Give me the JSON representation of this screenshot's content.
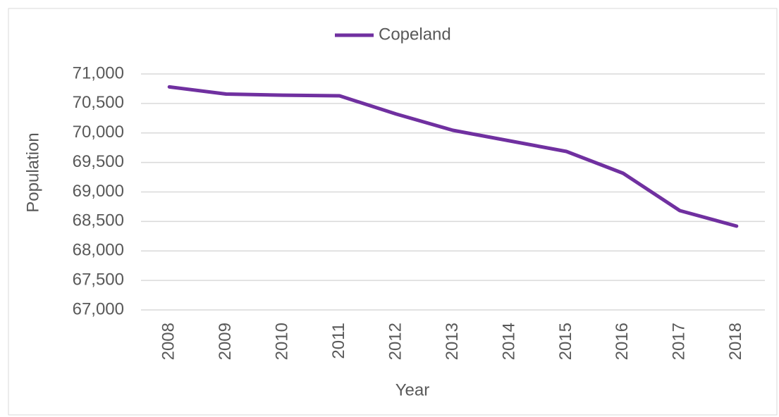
{
  "chart_data": {
    "type": "line",
    "categories": [
      "2008",
      "2009",
      "2010",
      "2011",
      "2012",
      "2013",
      "2014",
      "2015",
      "2016",
      "2017",
      "2018"
    ],
    "series": [
      {
        "name": "Copeland",
        "color": "#7030a0",
        "values": [
          70780,
          70660,
          70640,
          70630,
          70320,
          70045,
          69866,
          69687,
          69316,
          68684,
          68421
        ]
      }
    ],
    "xlabel": "Year",
    "ylabel": "Population",
    "ylim": [
      67000,
      71000
    ],
    "yticks": [
      {
        "value": 67000,
        "label": "67,000"
      },
      {
        "value": 67500,
        "label": "67,500"
      },
      {
        "value": 68000,
        "label": "68,000"
      },
      {
        "value": 68500,
        "label": "68,500"
      },
      {
        "value": 69000,
        "label": "69,000"
      },
      {
        "value": 69500,
        "label": "69,500"
      },
      {
        "value": 70000,
        "label": "70,000"
      },
      {
        "value": 70500,
        "label": "70,500"
      },
      {
        "value": 71000,
        "label": "71,000"
      }
    ],
    "grid": true,
    "legend": "top"
  }
}
